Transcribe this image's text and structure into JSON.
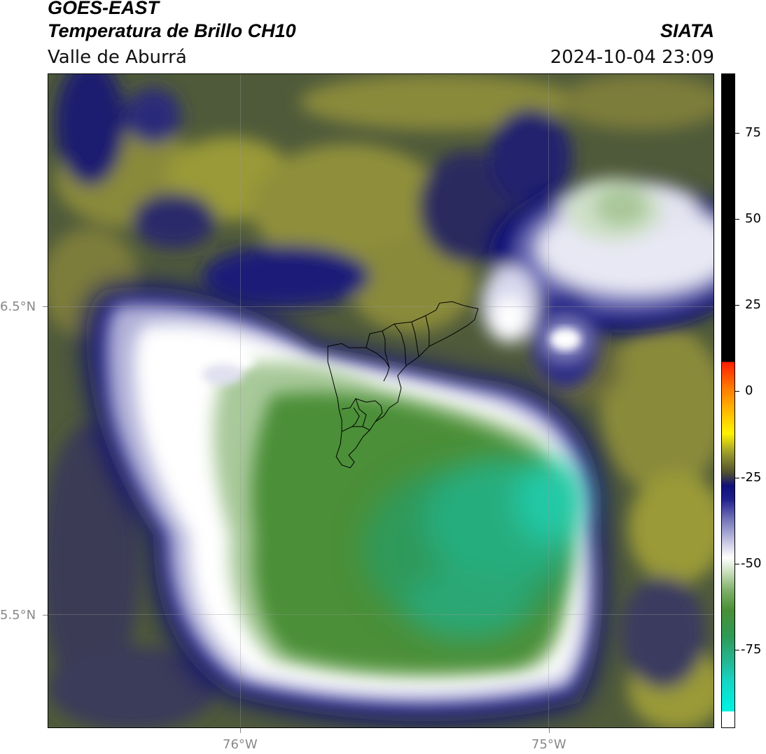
{
  "header": {
    "satellite": "GOES-EAST",
    "product": "Temperatura de Brillo CH10",
    "region": "Valle de Aburrá",
    "organization": "SIATA",
    "datetime": "2024-10-04 23:09"
  },
  "map": {
    "lat_labels": [
      "6.5°N",
      "5.5°N"
    ],
    "lon_labels": [
      "76°W",
      "75°W"
    ]
  },
  "colorbar": {
    "ticks": [
      "75",
      "50",
      "25",
      "0",
      "-25",
      "-50",
      "-75"
    ],
    "colors": {
      "warm_top": "#000000",
      "red": "#ff1e00",
      "orange": "#ff7a00",
      "yellow": "#fff200",
      "olive": "#9a9a2e",
      "navy": "#10107a",
      "lavender": "#b8b8dc",
      "white": "#ffffff",
      "green": "#4a8f35",
      "teal": "#14d6c4",
      "cyan": "#00f0e0"
    }
  }
}
